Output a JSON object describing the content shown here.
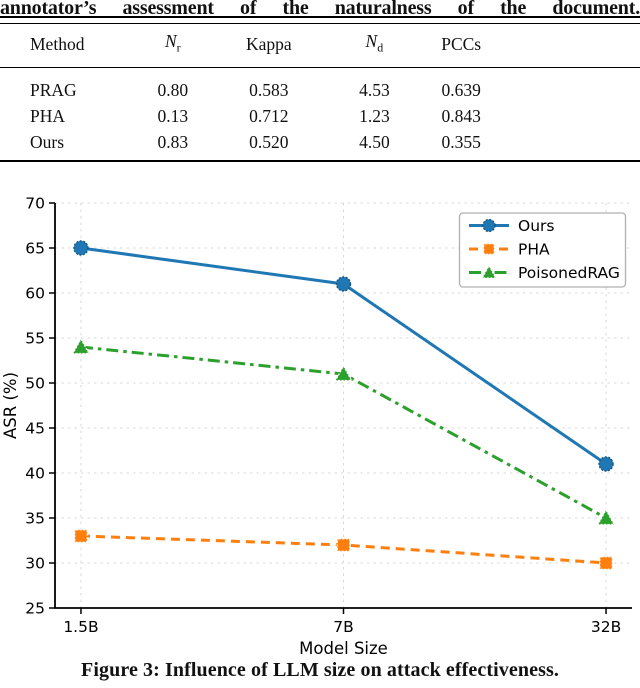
{
  "intro_text": "annotator’s assessment of the naturalness of the document.",
  "table": {
    "headers": [
      {
        "t": "Method"
      },
      {
        "t": "N",
        "italic": true,
        "sub": "r"
      },
      {
        "t": "Kappa"
      },
      {
        "t": "N",
        "italic": true,
        "sub": "d"
      },
      {
        "t": "PCCs"
      }
    ],
    "rows": [
      [
        "PRAG",
        "0.80",
        "0.583",
        "4.53",
        "0.639"
      ],
      [
        "PHA",
        "0.13",
        "0.712",
        "1.23",
        "0.843"
      ],
      [
        "Ours",
        "0.83",
        "0.520",
        "4.50",
        "0.355"
      ]
    ]
  },
  "chart_data": {
    "type": "line",
    "title": "",
    "xlabel": "Model Size",
    "ylabel": "ASR (%)",
    "categories": [
      "1.5B",
      "7B",
      "32B"
    ],
    "ylim": [
      25,
      70
    ],
    "ytick_step": 5,
    "grid": true,
    "legend_position": "upper right",
    "series": [
      {
        "name": "Ours",
        "values": [
          65,
          61,
          41
        ],
        "color": "#1f77b4",
        "edge": "#15567f",
        "linestyle": "solid",
        "marker": "circle"
      },
      {
        "name": "PHA",
        "values": [
          33,
          32,
          30
        ],
        "color": "#ff7f0e",
        "edge": "#cc6a00",
        "linestyle": "dashed",
        "marker": "square"
      },
      {
        "name": "PoisonedRAG",
        "values": [
          54,
          51,
          35
        ],
        "color": "#2ca02c",
        "edge": "#1d7a1d",
        "linestyle": "dashdot",
        "marker": "triangle"
      }
    ],
    "colors": {
      "grid": "#d9d9d9",
      "axis": "#000000",
      "legend_border": "#b0b0b0",
      "legend_bg": "#ffffff"
    }
  },
  "figure_caption": "Figure 3: Influence of LLM size on attack effectiveness."
}
